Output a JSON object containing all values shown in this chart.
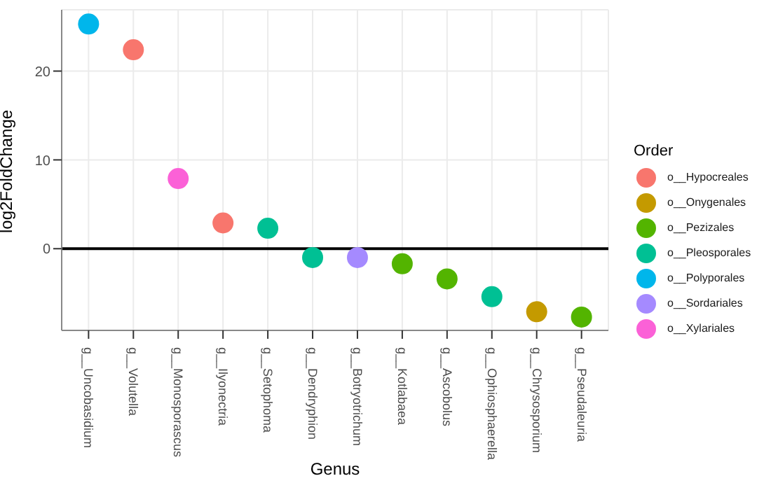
{
  "chart_data": {
    "type": "scatter",
    "xlabel": "Genus",
    "ylabel": "log2FoldChange",
    "legend_title": "Order",
    "categories": [
      "g__Uncobasidium",
      "g__Volutella",
      "g__Monosporascus",
      "g__Ilyonectria",
      "g__Setophoma",
      "g__Dendryphion",
      "g__Botryotrichum",
      "g__Kotlabaea",
      "g__Ascobolus",
      "g__Ophiosphaerella",
      "g__Chrysosporium",
      "g__Pseudaleuria"
    ],
    "series": [
      {
        "name": "o__Hypocreales",
        "color": "#f8766d",
        "values": [
          null,
          22.4,
          null,
          2.9,
          null,
          null,
          null,
          null,
          null,
          null,
          null,
          null
        ]
      },
      {
        "name": "o__Onygenales",
        "color": "#c49a00",
        "values": [
          null,
          null,
          null,
          null,
          null,
          null,
          null,
          null,
          null,
          null,
          -7.1,
          null
        ]
      },
      {
        "name": "o__Pezizales",
        "color": "#53b400",
        "values": [
          null,
          null,
          null,
          null,
          null,
          null,
          null,
          -1.7,
          -3.4,
          null,
          null,
          -7.7
        ]
      },
      {
        "name": "o__Pleosporales",
        "color": "#00c094",
        "values": [
          null,
          null,
          null,
          null,
          2.3,
          -1.0,
          null,
          null,
          null,
          -5.4,
          null,
          null
        ]
      },
      {
        "name": "o__Polyporales",
        "color": "#00b6eb",
        "values": [
          25.3,
          null,
          null,
          null,
          null,
          null,
          null,
          null,
          null,
          null,
          null,
          null
        ]
      },
      {
        "name": "o__Sordariales",
        "color": "#a58aff",
        "values": [
          null,
          null,
          null,
          null,
          null,
          null,
          -1.0,
          null,
          null,
          null,
          null,
          null
        ]
      },
      {
        "name": "o__Xylariales",
        "color": "#fb61d7",
        "values": [
          null,
          null,
          7.9,
          null,
          null,
          null,
          null,
          null,
          null,
          null,
          null,
          null
        ]
      }
    ],
    "ylim": [
      -9.2,
      26.9
    ],
    "yticks": [
      0,
      10,
      20
    ],
    "grid": true,
    "legend": "right",
    "marker": "circle",
    "ref_lines": [
      {
        "axis": "y",
        "value": 0,
        "color": "#000000"
      }
    ]
  }
}
